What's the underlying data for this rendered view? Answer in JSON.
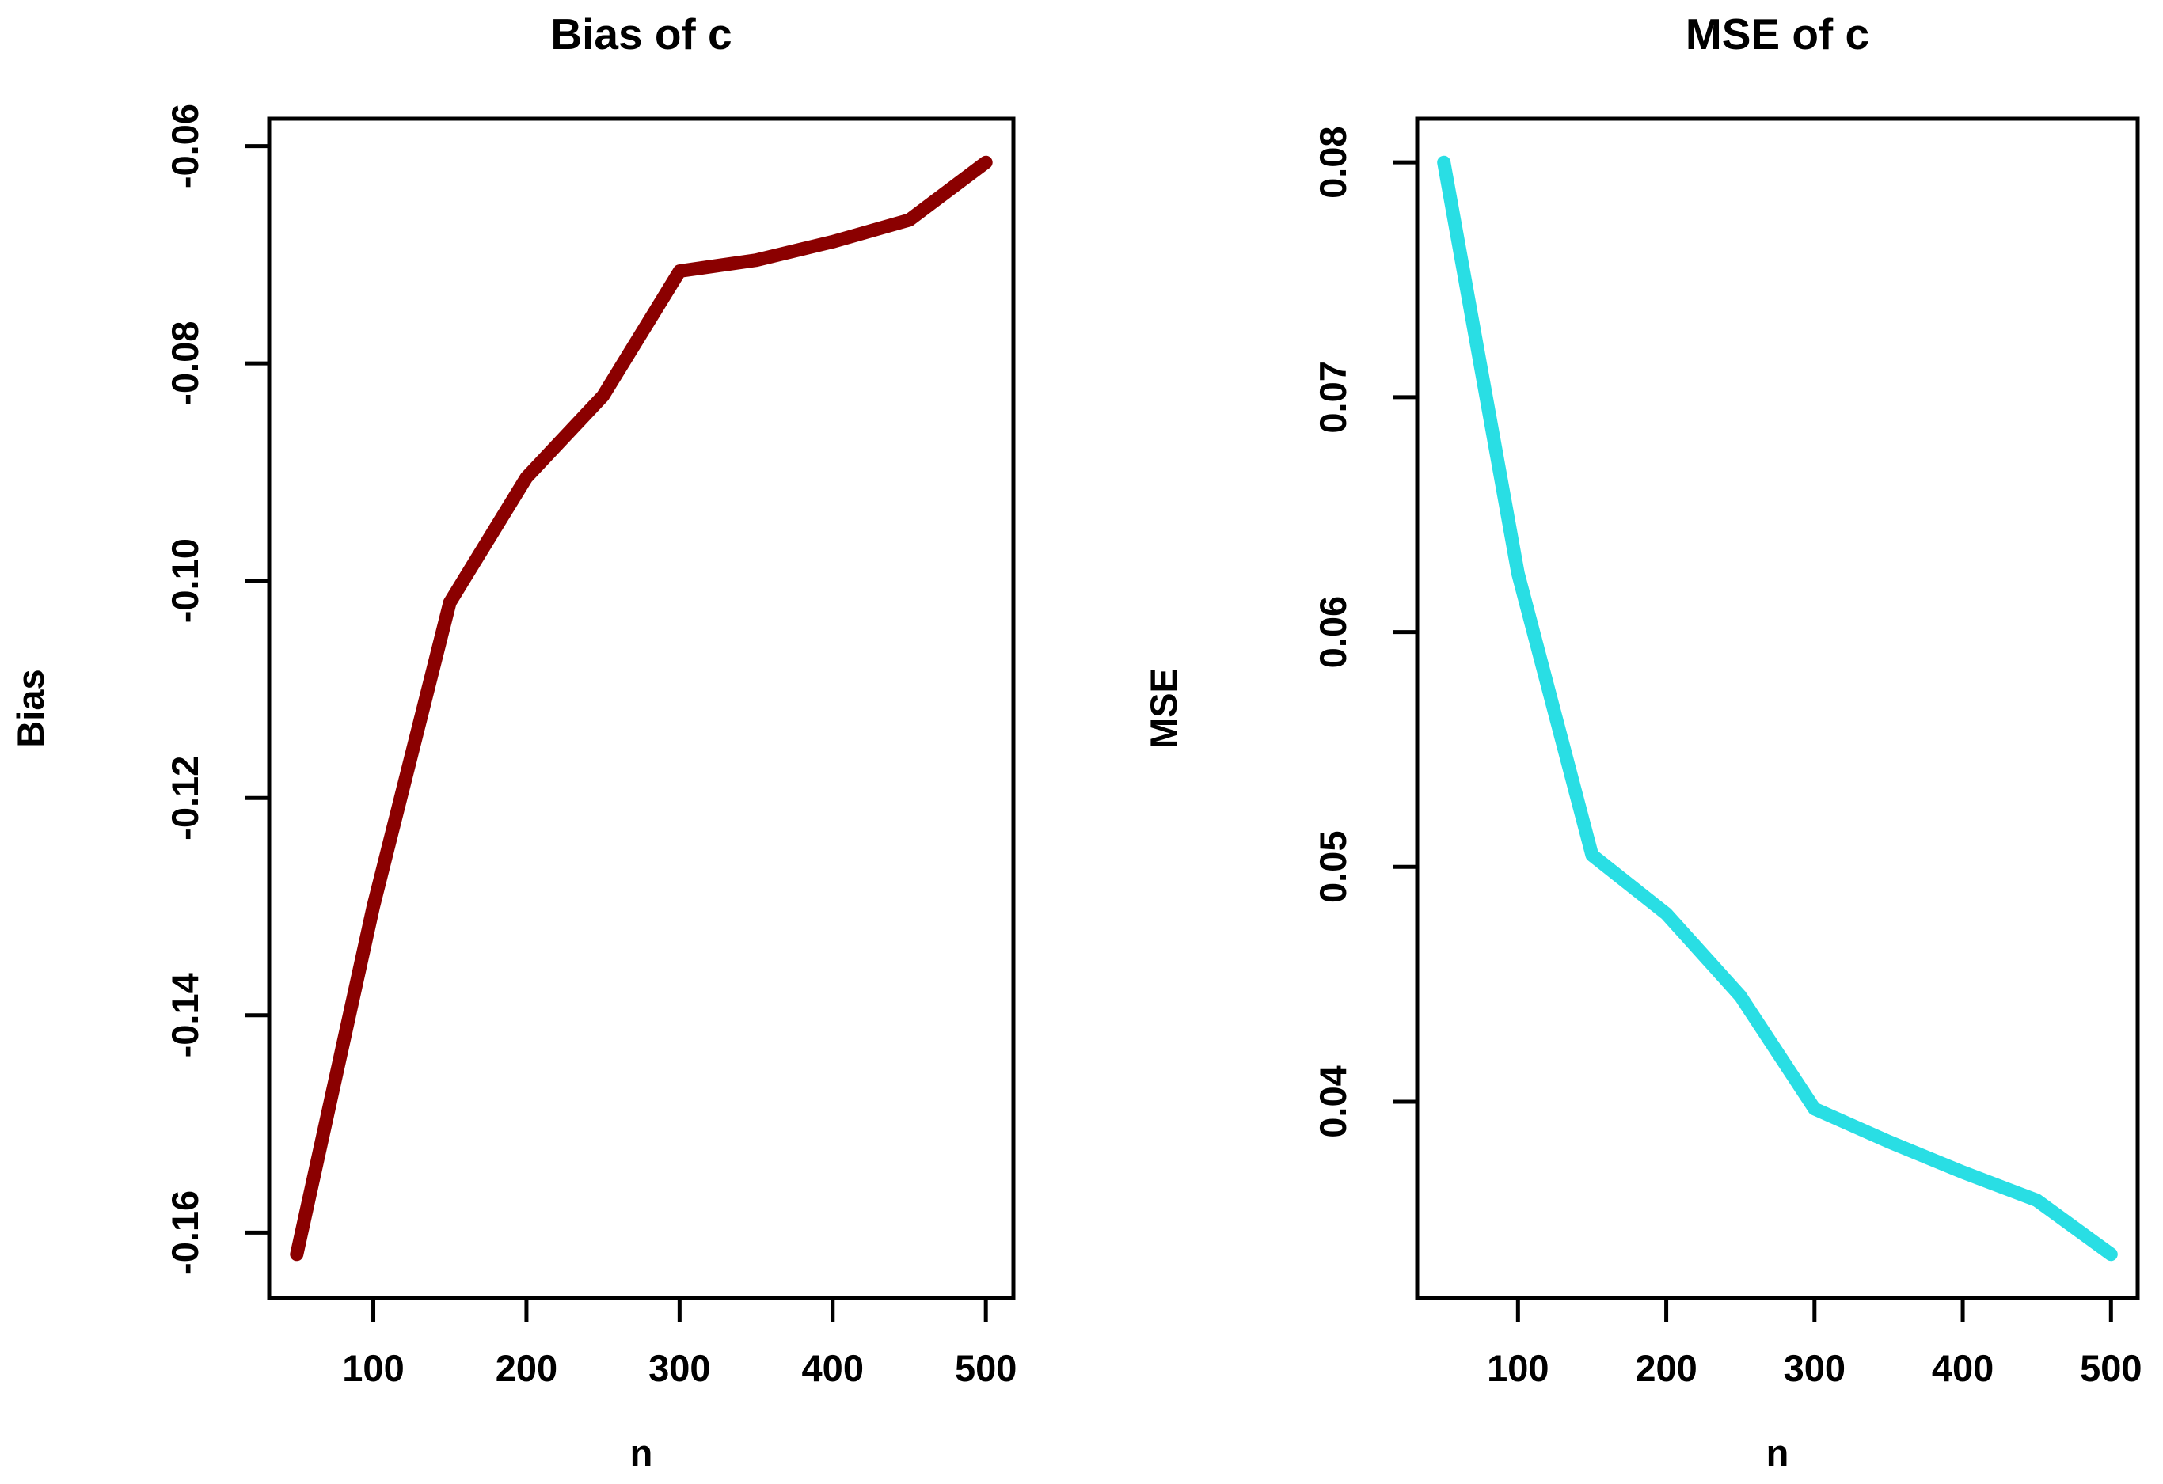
{
  "page": {
    "background_color": "#FFFFFF",
    "text_color": "#000000",
    "axis_color": "#000000"
  },
  "chart_data": [
    {
      "type": "line",
      "title": "Bias of  c",
      "xlabel": "n",
      "ylabel": "Bias",
      "grid": false,
      "legend": "none",
      "line_color": "#8B0000",
      "x": [
        50,
        100,
        150,
        200,
        250,
        300,
        350,
        400,
        450,
        500
      ],
      "series": [
        {
          "name": "Bias of c",
          "values": [
            -0.162,
            -0.13,
            -0.102,
            -0.0905,
            -0.083,
            -0.0715,
            -0.0705,
            -0.0688,
            -0.0668,
            -0.0615
          ]
        }
      ],
      "xlim": [
        50,
        500
      ],
      "ylim": [
        -0.162,
        -0.0615
      ],
      "x_ticks": [
        100,
        200,
        300,
        400,
        500
      ],
      "x_tick_labels": [
        "100",
        "200",
        "300",
        "400",
        "500"
      ],
      "y_ticks": [
        -0.16,
        -0.14,
        -0.12,
        -0.1,
        -0.08,
        -0.06
      ],
      "y_tick_labels": [
        "-0.16",
        "-0.14",
        "-0.12",
        "-0.10",
        "-0.08",
        "-0.06"
      ]
    },
    {
      "type": "line",
      "title": "MSE of  c",
      "xlabel": "n",
      "ylabel": "MSE",
      "grid": false,
      "legend": "none",
      "line_color": "#29DEE4",
      "x": [
        50,
        100,
        150,
        200,
        250,
        300,
        350,
        400,
        450,
        500
      ],
      "series": [
        {
          "name": "MSE of c",
          "values": [
            0.08,
            0.0625,
            0.0505,
            0.048,
            0.0445,
            0.0397,
            0.0383,
            0.037,
            0.0358,
            0.0335
          ]
        }
      ],
      "xlim": [
        50,
        500
      ],
      "ylim": [
        0.0335,
        0.08
      ],
      "x_ticks": [
        100,
        200,
        300,
        400,
        500
      ],
      "x_tick_labels": [
        "100",
        "200",
        "300",
        "400",
        "500"
      ],
      "y_ticks": [
        0.04,
        0.05,
        0.06,
        0.07,
        0.08
      ],
      "y_tick_labels": [
        "0.04",
        "0.05",
        "0.06",
        "0.07",
        "0.08"
      ]
    }
  ]
}
